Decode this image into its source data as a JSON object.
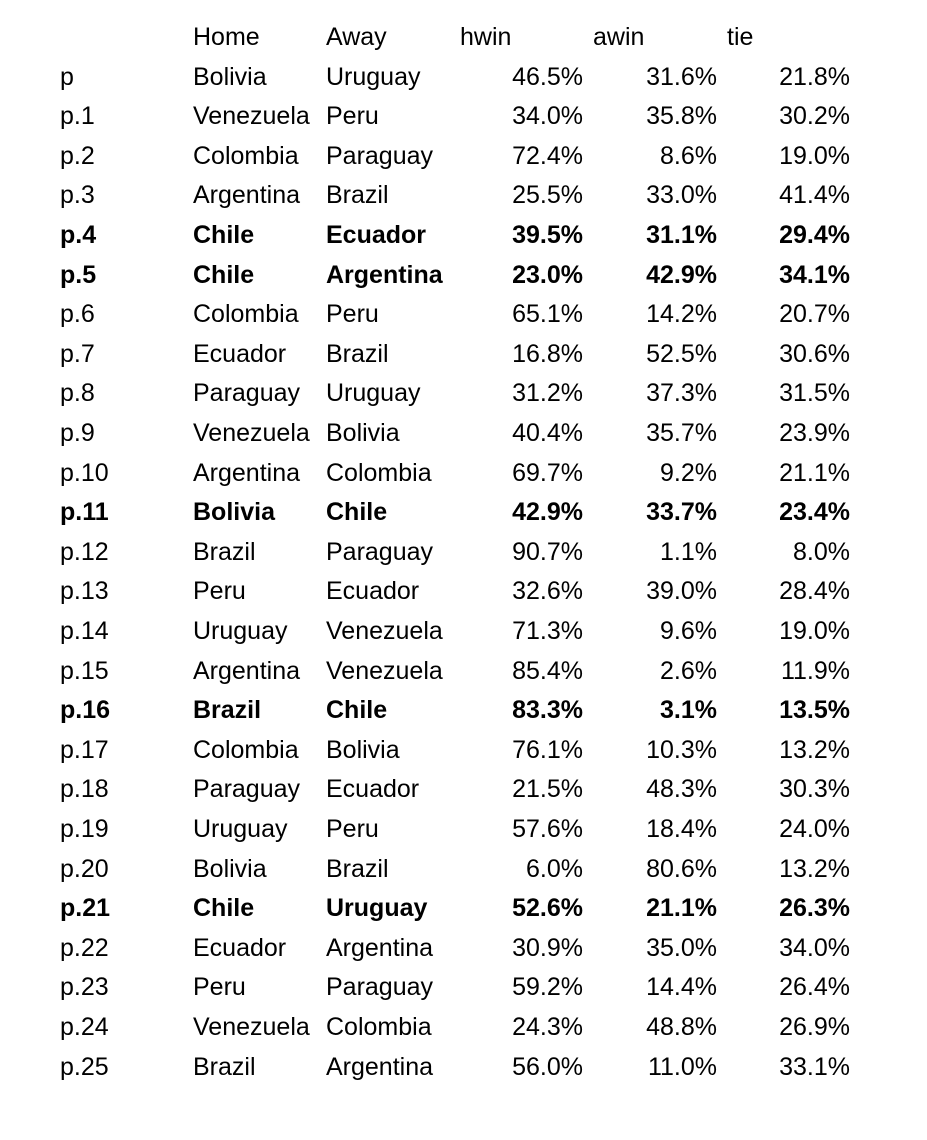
{
  "header": {
    "label": "",
    "home": "Home",
    "away": "Away",
    "hwin": "hwin",
    "awin": "awin",
    "tie": "tie"
  },
  "rows": [
    {
      "label": "p",
      "home": "Bolivia",
      "away": "Uruguay",
      "hwin": "46.5%",
      "awin": "31.6%",
      "tie": "21.8%",
      "bold": false
    },
    {
      "label": "p.1",
      "home": "Venezuela",
      "away": "Peru",
      "hwin": "34.0%",
      "awin": "35.8%",
      "tie": "30.2%",
      "bold": false
    },
    {
      "label": "p.2",
      "home": "Colombia",
      "away": "Paraguay",
      "hwin": "72.4%",
      "awin": "8.6%",
      "tie": "19.0%",
      "bold": false
    },
    {
      "label": "p.3",
      "home": "Argentina",
      "away": "Brazil",
      "hwin": "25.5%",
      "awin": "33.0%",
      "tie": "41.4%",
      "bold": false
    },
    {
      "label": "p.4",
      "home": "Chile",
      "away": "Ecuador",
      "hwin": "39.5%",
      "awin": "31.1%",
      "tie": "29.4%",
      "bold": true
    },
    {
      "label": "p.5",
      "home": "Chile",
      "away": "Argentina",
      "hwin": "23.0%",
      "awin": "42.9%",
      "tie": "34.1%",
      "bold": true
    },
    {
      "label": "p.6",
      "home": "Colombia",
      "away": "Peru",
      "hwin": "65.1%",
      "awin": "14.2%",
      "tie": "20.7%",
      "bold": false
    },
    {
      "label": "p.7",
      "home": "Ecuador",
      "away": "Brazil",
      "hwin": "16.8%",
      "awin": "52.5%",
      "tie": "30.6%",
      "bold": false
    },
    {
      "label": "p.8",
      "home": "Paraguay",
      "away": "Uruguay",
      "hwin": "31.2%",
      "awin": "37.3%",
      "tie": "31.5%",
      "bold": false
    },
    {
      "label": "p.9",
      "home": "Venezuela",
      "away": "Bolivia",
      "hwin": "40.4%",
      "awin": "35.7%",
      "tie": "23.9%",
      "bold": false
    },
    {
      "label": "p.10",
      "home": "Argentina",
      "away": "Colombia",
      "hwin": "69.7%",
      "awin": "9.2%",
      "tie": "21.1%",
      "bold": false
    },
    {
      "label": "p.11",
      "home": "Bolivia",
      "away": "Chile",
      "hwin": "42.9%",
      "awin": "33.7%",
      "tie": "23.4%",
      "bold": true
    },
    {
      "label": "p.12",
      "home": "Brazil",
      "away": "Paraguay",
      "hwin": "90.7%",
      "awin": "1.1%",
      "tie": "8.0%",
      "bold": false
    },
    {
      "label": "p.13",
      "home": "Peru",
      "away": "Ecuador",
      "hwin": "32.6%",
      "awin": "39.0%",
      "tie": "28.4%",
      "bold": false
    },
    {
      "label": "p.14",
      "home": "Uruguay",
      "away": "Venezuela",
      "hwin": "71.3%",
      "awin": "9.6%",
      "tie": "19.0%",
      "bold": false
    },
    {
      "label": "p.15",
      "home": "Argentina",
      "away": "Venezuela",
      "hwin": "85.4%",
      "awin": "2.6%",
      "tie": "11.9%",
      "bold": false
    },
    {
      "label": "p.16",
      "home": "Brazil",
      "away": "Chile",
      "hwin": "83.3%",
      "awin": "3.1%",
      "tie": "13.5%",
      "bold": true
    },
    {
      "label": "p.17",
      "home": "Colombia",
      "away": "Bolivia",
      "hwin": "76.1%",
      "awin": "10.3%",
      "tie": "13.2%",
      "bold": false
    },
    {
      "label": "p.18",
      "home": "Paraguay",
      "away": "Ecuador",
      "hwin": "21.5%",
      "awin": "48.3%",
      "tie": "30.3%",
      "bold": false
    },
    {
      "label": "p.19",
      "home": "Uruguay",
      "away": "Peru",
      "hwin": "57.6%",
      "awin": "18.4%",
      "tie": "24.0%",
      "bold": false
    },
    {
      "label": "p.20",
      "home": "Bolivia",
      "away": "Brazil",
      "hwin": "6.0%",
      "awin": "80.6%",
      "tie": "13.2%",
      "bold": false
    },
    {
      "label": "p.21",
      "home": "Chile",
      "away": "Uruguay",
      "hwin": "52.6%",
      "awin": "21.1%",
      "tie": "26.3%",
      "bold": true
    },
    {
      "label": "p.22",
      "home": "Ecuador",
      "away": "Argentina",
      "hwin": "30.9%",
      "awin": "35.0%",
      "tie": "34.0%",
      "bold": false
    },
    {
      "label": "p.23",
      "home": "Peru",
      "away": "Paraguay",
      "hwin": "59.2%",
      "awin": "14.4%",
      "tie": "26.4%",
      "bold": false
    },
    {
      "label": "p.24",
      "home": "Venezuela",
      "away": "Colombia",
      "hwin": "24.3%",
      "awin": "48.8%",
      "tie": "26.9%",
      "bold": false
    },
    {
      "label": "p.25",
      "home": "Brazil",
      "away": "Argentina",
      "hwin": "56.0%",
      "awin": "11.0%",
      "tie": "33.1%",
      "bold": false
    }
  ]
}
